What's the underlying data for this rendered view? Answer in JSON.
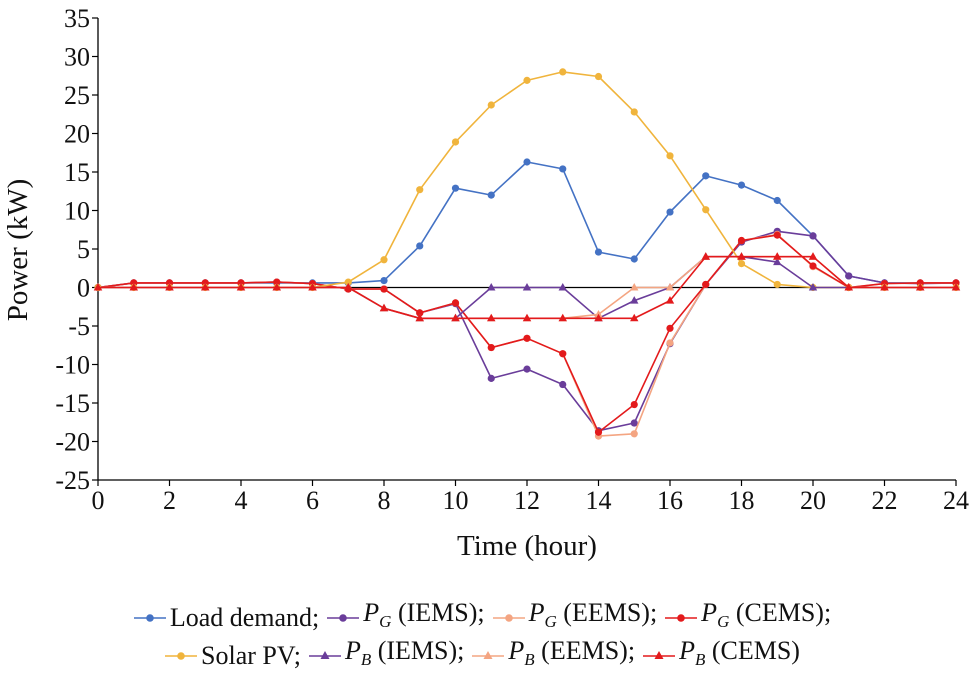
{
  "chart_data": {
    "type": "line",
    "xlabel": "Time (hour)",
    "ylabel": "Power (kW)",
    "xlim": [
      0,
      24
    ],
    "ylim": [
      -25,
      35
    ],
    "xticks": [
      0,
      2,
      4,
      6,
      8,
      10,
      12,
      14,
      16,
      18,
      20,
      22,
      24
    ],
    "yticks": [
      35,
      30,
      25,
      20,
      15,
      10,
      5,
      0,
      -5,
      -10,
      -15,
      -20,
      -25
    ],
    "grid": false,
    "legend_position": "bottom",
    "x": [
      0,
      1,
      2,
      3,
      4,
      5,
      6,
      7,
      8,
      9,
      10,
      11,
      12,
      13,
      14,
      15,
      16,
      17,
      18,
      19,
      20,
      21,
      22,
      23,
      24
    ],
    "series": [
      {
        "name": "Load demand",
        "legend_text": "Load demand;",
        "color": "#4472C4",
        "marker": "circle",
        "values": [
          0,
          0.6,
          0.6,
          0.6,
          0.6,
          0.6,
          0.6,
          0.6,
          0.9,
          5.4,
          12.9,
          12,
          16.3,
          15.4,
          4.6,
          3.7,
          9.8,
          14.5,
          13.3,
          11.3,
          6.7,
          1.5,
          0.6,
          0.6,
          0.6
        ]
      },
      {
        "name": "P_G (IEMS)",
        "legend_text": "(IEMS);",
        "legend_symbol": "P",
        "legend_sub": "G",
        "color": "#6A3D9A",
        "marker": "circle",
        "values": [
          0,
          0.6,
          0.6,
          0.6,
          0.6,
          0.7,
          0.5,
          -0.2,
          -0.2,
          -3.3,
          -2.1,
          -11.8,
          -10.6,
          -12.6,
          -18.6,
          -17.6,
          -7.3,
          0.4,
          5.9,
          7.3,
          6.7,
          1.5,
          0.6,
          0.5,
          0.6
        ]
      },
      {
        "name": "P_G (EEMS)",
        "legend_text": "(EEMS);",
        "legend_symbol": "P",
        "legend_sub": "G",
        "color": "#F4A582",
        "marker": "circle",
        "values": [
          0,
          0.6,
          0.6,
          0.6,
          0.6,
          0.7,
          0.5,
          -0.2,
          -0.2,
          -3.3,
          -2,
          -7.8,
          -6.6,
          -8.6,
          -19.3,
          -19,
          -7.2,
          0.4,
          6.1,
          6.9,
          2.7,
          0,
          0.5,
          0.6,
          0.6
        ]
      },
      {
        "name": "P_G (CEMS)",
        "legend_text": "(CEMS);",
        "legend_symbol": "P",
        "legend_sub": "G",
        "color": "#E31A1C",
        "marker": "circle",
        "values": [
          0,
          0.6,
          0.6,
          0.6,
          0.6,
          0.7,
          0.5,
          -0.2,
          -0.2,
          -3.3,
          -2,
          -7.8,
          -6.6,
          -8.6,
          -18.8,
          -15.2,
          -5.3,
          0.4,
          6.1,
          6.8,
          2.8,
          0,
          0.5,
          0.6,
          0.6
        ]
      },
      {
        "name": "Solar PV",
        "legend_text": "Solar PV;",
        "color": "#F0B43C",
        "marker": "circle",
        "values": [
          0,
          0,
          0,
          0,
          0,
          0,
          0,
          0.7,
          3.6,
          12.7,
          18.9,
          23.7,
          26.9,
          28,
          27.4,
          22.8,
          17.1,
          10.1,
          3.1,
          0.4,
          0,
          0,
          0,
          0,
          0
        ]
      },
      {
        "name": "P_B (IEMS)",
        "legend_text": "(IEMS);",
        "legend_symbol": "P",
        "legend_sub": "B",
        "color": "#6A3D9A",
        "marker": "triangle",
        "values": [
          0,
          0,
          0,
          0,
          0,
          0,
          0,
          0,
          -2.7,
          -4,
          -4,
          0,
          0,
          0,
          -4,
          -1.7,
          0,
          4,
          4,
          3.3,
          0,
          0,
          0,
          0,
          0
        ]
      },
      {
        "name": "P_B (EEMS)",
        "legend_text": "(EEMS);",
        "legend_symbol": "P",
        "legend_sub": "B",
        "color": "#F4A582",
        "marker": "triangle",
        "values": [
          0,
          0,
          0,
          0,
          0,
          0,
          0,
          0,
          -2.7,
          -4,
          -4,
          -4,
          -4,
          -4,
          -3.5,
          0,
          0,
          4,
          4,
          4,
          4,
          0,
          0,
          0,
          0
        ]
      },
      {
        "name": "P_B (CEMS)",
        "legend_text": "(CEMS)",
        "legend_symbol": "P",
        "legend_sub": "B",
        "color": "#E31A1C",
        "marker": "triangle",
        "values": [
          0,
          0,
          0,
          0,
          0,
          0,
          0,
          0,
          -2.7,
          -4,
          -4,
          -4,
          -4,
          -4,
          -4,
          -4,
          -1.7,
          4,
          4,
          4,
          4,
          0,
          0,
          0,
          0
        ]
      }
    ]
  }
}
